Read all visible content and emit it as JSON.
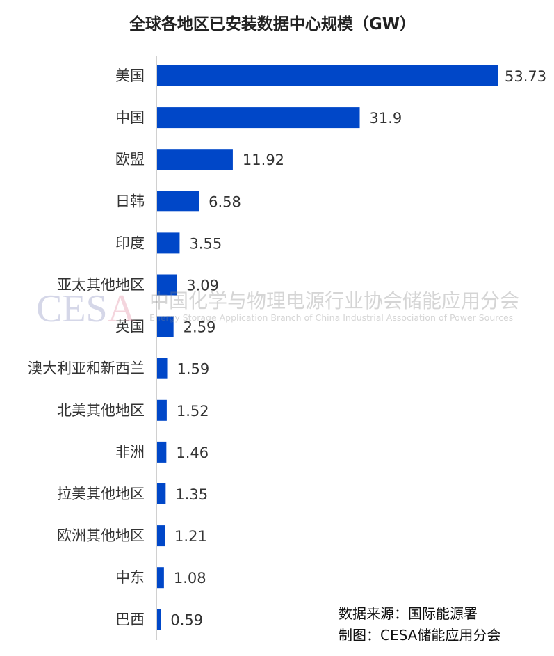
{
  "chart_data": {
    "type": "bar",
    "orientation": "horizontal",
    "title": "全球各地区已安装数据中心规模（GW）",
    "categories": [
      "美国",
      "中国",
      "欧盟",
      "日韩",
      "印度",
      "亚太其他地区",
      "英国",
      "澳大利亚和新西兰",
      "北美其他地区",
      "非洲",
      "拉美其他地区",
      "欧洲其他地区",
      "中东",
      "巴西"
    ],
    "values": [
      53.73,
      31.9,
      11.92,
      6.58,
      3.55,
      3.09,
      2.59,
      1.59,
      1.52,
      1.46,
      1.35,
      1.21,
      1.08,
      0.59
    ],
    "value_labels": [
      "53.73",
      "31.9",
      "11.92",
      "6.58",
      "3.55",
      "3.09",
      "2.59",
      "1.59",
      "1.52",
      "1.46",
      "1.35",
      "1.21",
      "1.08",
      "0.59"
    ],
    "xlim": [
      0,
      53.73
    ],
    "grid": false,
    "bar_color": "#0047c8"
  },
  "watermark": {
    "logo": "CESA",
    "cn": "中国化学与物理电源行业协会储能应用分会",
    "en": "Energy Storage Application Branch of China Industrial Association of Power Sources"
  },
  "notes": {
    "source": "数据来源：国际能源署",
    "maker": "制图：CESA储能应用分会"
  }
}
